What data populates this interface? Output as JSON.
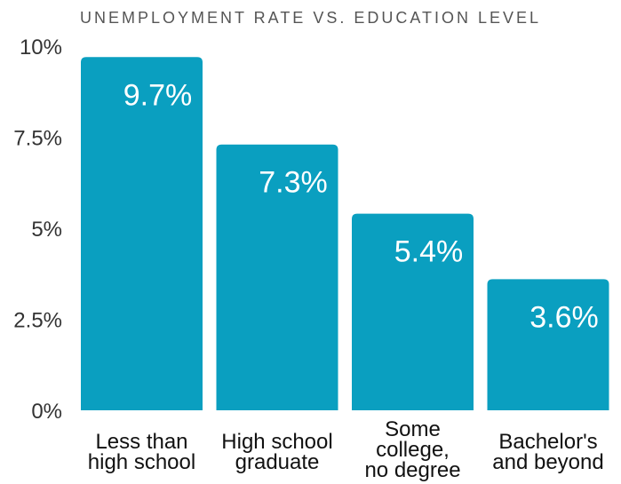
{
  "chart_data": {
    "type": "bar",
    "title": "UNEMPLOYMENT RATE VS. EDUCATION LEVEL",
    "categories": [
      [
        "Less than",
        "high school"
      ],
      [
        "High school",
        "graduate"
      ],
      [
        "Some",
        "college,",
        "no degree"
      ],
      [
        "Bachelor's",
        "and beyond"
      ]
    ],
    "values": [
      9.7,
      7.3,
      5.4,
      3.6
    ],
    "data_labels": [
      "9.7%",
      "7.3%",
      "5.4%",
      "3.6%"
    ],
    "yticks": [
      0,
      2.5,
      5,
      7.5,
      10
    ],
    "ytick_labels": [
      "0%",
      "2.5%",
      "5%",
      "7.5%",
      "10%"
    ],
    "ylim": [
      0,
      10
    ],
    "xlabel": "",
    "ylabel": "",
    "grid": false,
    "bar_color": "#0a9fc0"
  }
}
